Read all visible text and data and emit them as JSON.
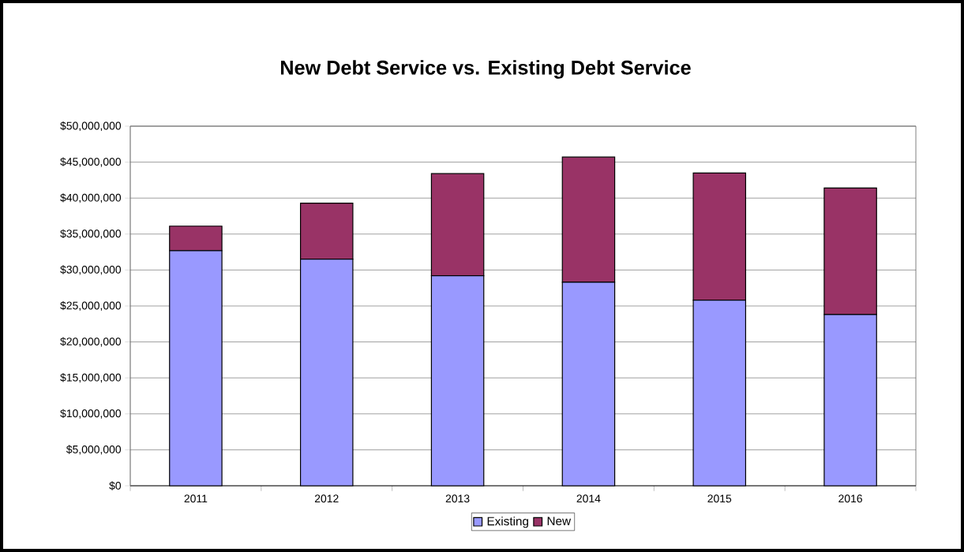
{
  "chart_data": {
    "type": "bar",
    "title": "New Debt Service vs. Existing Debt Service",
    "categories": [
      "2011",
      "2012",
      "2013",
      "2014",
      "2015",
      "2016"
    ],
    "series": [
      {
        "name": "Existing",
        "color": "#9999ff",
        "values": [
          32700000,
          31500000,
          29200000,
          28300000,
          25800000,
          23800000
        ]
      },
      {
        "name": "New",
        "color": "#993366",
        "values": [
          3400000,
          7800000,
          14200000,
          17400000,
          17700000,
          17600000
        ]
      }
    ],
    "stacked": true,
    "ylim": [
      0,
      50000000
    ],
    "yticks": [
      {
        "value": 0,
        "label": "$0"
      },
      {
        "value": 5000000,
        "label": "$5,000,000"
      },
      {
        "value": 10000000,
        "label": "$10,000,000"
      },
      {
        "value": 15000000,
        "label": "$15,000,000"
      },
      {
        "value": 20000000,
        "label": "$20,000,000"
      },
      {
        "value": 25000000,
        "label": "$25,000,000"
      },
      {
        "value": 30000000,
        "label": "$30,000,000"
      },
      {
        "value": 35000000,
        "label": "$35,000,000"
      },
      {
        "value": 40000000,
        "label": "$40,000,000"
      },
      {
        "value": 45000000,
        "label": "$45,000,000"
      },
      {
        "value": 50000000,
        "label": "$50,000,000"
      }
    ],
    "grid": "y",
    "legend": "bottom"
  }
}
